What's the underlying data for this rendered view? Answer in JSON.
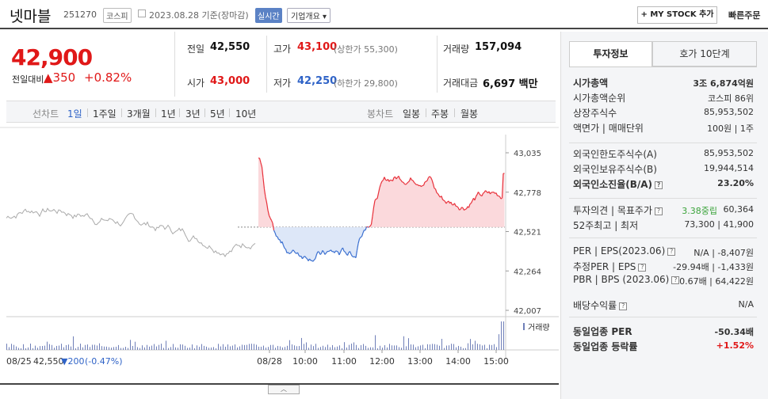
{
  "header": {
    "name": "넷마블",
    "code": "251270",
    "market": "코스피",
    "date": "2023.08.28 기준(장마감)",
    "live_badge": "실시간",
    "company_info": "기업개요 ▾",
    "mystock_button": "+ MY STOCK 추가",
    "quick_order": "빠른주문"
  },
  "price": {
    "current": "42,900",
    "change_label": "전일대비",
    "change_value": "▲350",
    "change_pct": "+0.82%"
  },
  "quote": {
    "prev_label": "전일",
    "prev_value": "42,550",
    "high_label": "고가",
    "high_value": "43,100",
    "high_sub": "(상한가 55,300)",
    "volume_label": "거래량",
    "volume_value": "157,094",
    "open_label": "시가",
    "open_value": "43,000",
    "low_label": "저가",
    "low_value": "42,250",
    "low_sub": "(하한가 29,800)",
    "amount_label": "거래대금",
    "amount_value": "6,697 백만"
  },
  "periods": {
    "line_label": "선차트",
    "items": [
      "1일",
      "1주일",
      "3개월",
      "1년",
      "3년",
      "5년",
      "10년"
    ],
    "selected": "1일",
    "candle_label": "봉차트",
    "candle_items": [
      "일봉",
      "주봉",
      "월봉"
    ]
  },
  "chart_data": {
    "type": "line",
    "y_ticks": [
      "43,035",
      "42,778",
      "42,521",
      "42,264",
      "42,007"
    ],
    "ylim": [
      42007,
      43035
    ],
    "x_ticks": [
      "08/28",
      "10:00",
      "11:00",
      "12:00",
      "13:00",
      "14:00",
      "15:00"
    ],
    "prev_close": 42550,
    "volume_label": "거래량",
    "footer_prev_date": "08/25",
    "footer_prev_close": "42,550",
    "footer_prev_change": "▼200",
    "footer_prev_pct": "(-0.47%)",
    "colors": {
      "up": "#e8303a",
      "down": "#3a6fd0",
      "prev": "#aaaaaa",
      "volume": "#6f7fb8"
    }
  },
  "invest": {
    "tab1": "투자정보",
    "tab2": "호가 10단계",
    "rows": [
      {
        "label": "시가총액",
        "value": "3조 6,874억원"
      },
      {
        "label": "시가총액순위",
        "value": "코스피 86위"
      },
      {
        "label": "상장주식수",
        "value": "85,953,502"
      },
      {
        "label": "액면가 | 매매단위",
        "value": "100원 | 1주"
      },
      {
        "label": "외국인한도주식수(A)",
        "value": "85,953,502"
      },
      {
        "label": "외국인보유주식수(B)",
        "value": "19,944,514"
      },
      {
        "label": "외국인소진율(B/A)",
        "value": "23.20%"
      },
      {
        "label": "투자의견 | 목표주가",
        "value_green": "3.38중립",
        "value": "60,364"
      },
      {
        "label": "52주최고 | 최저",
        "value": "73,300 | 41,900"
      },
      {
        "label": "PER | EPS(2023.06)",
        "value": "N/A | -8,407원"
      },
      {
        "label": "추정PER | EPS",
        "value": "-29.94배 | -1,433원"
      },
      {
        "label": "PBR | BPS (2023.06)",
        "value": "0.67배 | 64,422원"
      },
      {
        "label": "배당수익률",
        "value": "N/A"
      },
      {
        "label": "동일업종 PER",
        "value": "-50.34배"
      },
      {
        "label": "동일업종 등락률",
        "value": "+1.52%"
      }
    ]
  }
}
